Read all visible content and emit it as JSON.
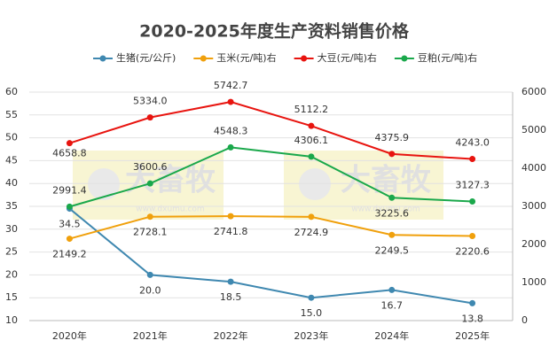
{
  "chart_data": {
    "type": "line",
    "title": "2020-2025年度生产资料销售价格",
    "categories": [
      "2020年",
      "2021年",
      "2022年",
      "2023年",
      "2024年",
      "2025年"
    ],
    "series": [
      {
        "name": "生猪(元/公斤)",
        "color": "#3f88b0",
        "axis": "y",
        "values": [
          34.5,
          20.0,
          18.5,
          15.0,
          16.7,
          13.8
        ],
        "value_labels": [
          "34.5",
          "20.0",
          "18.5",
          "15.0",
          "16.7",
          "13.8"
        ]
      },
      {
        "name": "玉米(元/吨)右",
        "color": "#f0a00c",
        "axis": "y2",
        "values": [
          2149.2,
          2728.1,
          2741.8,
          2724.9,
          2249.5,
          2220.6
        ],
        "value_labels": [
          "2149.2",
          "2728.1",
          "2741.8",
          "2724.9",
          "2249.5",
          "2220.6"
        ]
      },
      {
        "name": "大豆(元/吨)右",
        "color": "#e8140f",
        "axis": "y2",
        "values": [
          4658.8,
          5334.0,
          5742.7,
          5112.2,
          4375.9,
          4243.0
        ],
        "value_labels": [
          "4658.8",
          "5334.0",
          "5742.7",
          "5112.2",
          "4375.9",
          "4243.0"
        ]
      },
      {
        "name": "豆粕(元/吨)右",
        "color": "#1aa84b",
        "axis": "y2",
        "values": [
          2991.4,
          3600.6,
          4548.3,
          4306.1,
          3225.6,
          3127.3
        ],
        "value_labels": [
          "2991.4",
          "3600.6",
          "4548.3",
          "4306.1",
          "3225.6",
          "3127.3"
        ]
      }
    ],
    "ylim": [
      10,
      60
    ],
    "yticks": [
      10,
      15,
      20,
      25,
      30,
      35,
      40,
      45,
      50,
      55,
      60
    ],
    "y2lim": [
      0,
      6000
    ],
    "y2ticks": [
      0,
      1000,
      2000,
      3000,
      4000,
      5000,
      6000
    ],
    "grid": true,
    "legend": "top",
    "watermark": {
      "text": "大畜牧",
      "url": "www.dxumu.com"
    }
  }
}
